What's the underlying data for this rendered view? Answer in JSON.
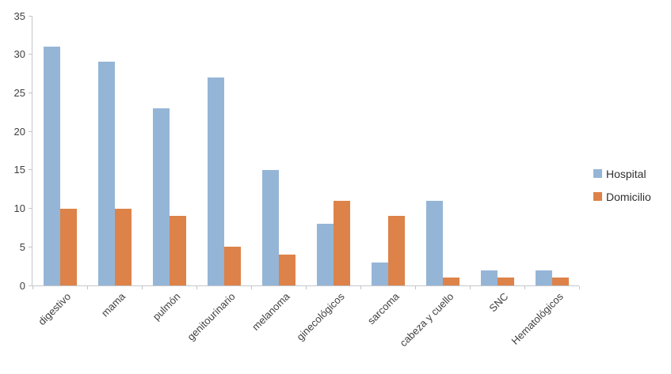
{
  "chart_data": {
    "type": "bar",
    "title": "",
    "xlabel": "",
    "ylabel": "",
    "categories": [
      "digestivo",
      "mama",
      "pulmón",
      "genitourinario",
      "melanoma",
      "ginecológicos",
      "sarcoma",
      "cabeza y cuello",
      "SNC",
      "Hematológicos"
    ],
    "series": [
      {
        "name": "Hospital",
        "color": "#95b5d7",
        "values": [
          31,
          29,
          23,
          27,
          15,
          8,
          3,
          11,
          2,
          2
        ]
      },
      {
        "name": "Domicilio",
        "color": "#dd8248",
        "values": [
          10,
          10,
          9,
          5,
          4,
          11,
          9,
          1,
          1,
          1
        ]
      }
    ],
    "ylim": [
      0,
      35
    ],
    "yticks": [
      0,
      5,
      10,
      15,
      20,
      25,
      30,
      35
    ],
    "grid": "off",
    "legend_position": "right",
    "axis_color": "#c3c6ca",
    "tick_label_color": "#3f3f3f"
  }
}
